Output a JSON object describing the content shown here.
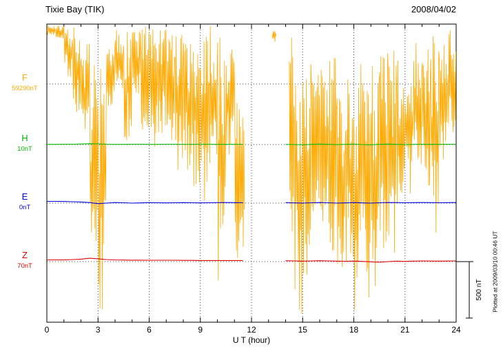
{
  "header": {
    "title": "Tixie Bay (TIK)",
    "date": "2008/04/02"
  },
  "axis": {
    "xlabel": "U T (hour)"
  },
  "scale_bar": {
    "label": "500 nT",
    "nT": 500
  },
  "plotted_note": "Plotted at 2009/03/10 00:46 UT",
  "trace_labels": [
    {
      "letter": "F",
      "value": "59290nT",
      "color": "#FFAA00"
    },
    {
      "letter": "H",
      "value": "10nT",
      "color": "#00BB00"
    },
    {
      "letter": "E",
      "value": "0nT",
      "color": "#0000DD"
    },
    {
      "letter": "Z",
      "value": "70nT",
      "color": "#DD0000"
    }
  ],
  "chart_data": {
    "type": "line",
    "title": "Tixie Bay (TIK) magnetogram 2008/04/02",
    "xlabel": "U T (hour)",
    "x_range": [
      0,
      24
    ],
    "x_ticks": [
      0,
      3,
      6,
      9,
      12,
      15,
      18,
      21,
      24
    ],
    "x_minor_tick_hr": 1,
    "grid": "dotted vertical at 3-hour marks, dotted horizontal at each trace baseline",
    "scale_bar_nT": 500,
    "data_gap_hours": [
      11.6,
      13.9
    ],
    "envelope_format": [
      "x_start_hr",
      "x_end_hr",
      "min_offset_nT",
      "max_offset_nT"
    ],
    "series": [
      {
        "name": "F",
        "color": "#FFAA00",
        "baseline_nT": 59290,
        "style": "noisy-envelope",
        "envelope": [
          [
            0.0,
            0.5,
            430,
            520
          ],
          [
            0.5,
            1.0,
            400,
            520
          ],
          [
            1.0,
            1.5,
            60,
            520
          ],
          [
            1.5,
            2.0,
            -300,
            520
          ],
          [
            2.0,
            2.5,
            -640,
            370
          ],
          [
            2.5,
            3.0,
            -1770,
            190
          ],
          [
            3.0,
            3.5,
            -2010,
            190
          ],
          [
            3.5,
            4.0,
            -225,
            310
          ],
          [
            4.0,
            4.5,
            -105,
            490
          ],
          [
            4.5,
            5.0,
            -550,
            520
          ],
          [
            5.0,
            5.5,
            -165,
            520
          ],
          [
            5.5,
            6.0,
            -520,
            520
          ],
          [
            6.0,
            6.5,
            -640,
            520
          ],
          [
            6.5,
            7.0,
            -465,
            490
          ],
          [
            7.0,
            7.5,
            -640,
            520
          ],
          [
            7.5,
            8.0,
            -820,
            490
          ],
          [
            8.0,
            8.5,
            -760,
            400
          ],
          [
            8.5,
            9.0,
            -940,
            460
          ],
          [
            9.0,
            9.5,
            -1060,
            490
          ],
          [
            9.5,
            10.0,
            -760,
            520
          ],
          [
            10.0,
            10.5,
            -1770,
            490
          ],
          [
            10.5,
            11.0,
            -700,
            370
          ],
          [
            11.0,
            11.6,
            -1830,
            130
          ],
          [
            13.2,
            13.45,
            370,
            490
          ],
          [
            14.2,
            14.5,
            -1360,
            430
          ],
          [
            14.5,
            15.0,
            -2040,
            130
          ],
          [
            15.0,
            15.5,
            -2010,
            370
          ],
          [
            15.5,
            16.0,
            -1535,
            190
          ],
          [
            16.0,
            16.5,
            -1240,
            130
          ],
          [
            16.5,
            17.0,
            -1475,
            250
          ],
          [
            17.0,
            17.5,
            -1830,
            70
          ],
          [
            17.5,
            18.0,
            -1655,
            130
          ],
          [
            18.0,
            18.5,
            -2010,
            190
          ],
          [
            18.5,
            19.0,
            -1950,
            130
          ],
          [
            19.0,
            19.5,
            -1830,
            250
          ],
          [
            19.5,
            20.0,
            -1770,
            310
          ],
          [
            20.0,
            20.5,
            -1655,
            370
          ],
          [
            20.5,
            21.0,
            -1360,
            250
          ],
          [
            21.0,
            21.5,
            -1060,
            310
          ],
          [
            21.5,
            22.0,
            -760,
            400
          ],
          [
            22.0,
            22.5,
            -940,
            370
          ],
          [
            22.5,
            23.0,
            -1360,
            460
          ],
          [
            23.0,
            23.5,
            -760,
            370
          ],
          [
            23.5,
            24.0,
            -465,
            490
          ]
        ]
      },
      {
        "name": "H",
        "color": "#00BB00",
        "baseline_nT": 10,
        "style": "line",
        "points": [
          [
            0,
            12
          ],
          [
            0.5,
            12
          ],
          [
            1,
            13
          ],
          [
            1.5,
            13
          ],
          [
            2,
            15
          ],
          [
            2.5,
            18
          ],
          [
            3,
            16
          ],
          [
            3.5,
            13
          ],
          [
            4,
            12
          ],
          [
            4.5,
            12
          ],
          [
            5,
            13
          ],
          [
            5.5,
            13
          ],
          [
            6,
            12
          ],
          [
            6.5,
            12
          ],
          [
            7,
            13
          ],
          [
            7.5,
            13
          ],
          [
            8,
            12
          ],
          [
            8.5,
            12
          ],
          [
            9,
            13
          ],
          [
            9.5,
            13
          ],
          [
            10,
            12
          ],
          [
            10.5,
            12
          ],
          [
            11,
            13
          ],
          [
            11.5,
            12
          ],
          [
            12,
            null
          ],
          [
            12.5,
            null
          ],
          [
            13,
            null
          ],
          [
            13.5,
            null
          ],
          [
            14,
            12
          ],
          [
            14.5,
            10
          ],
          [
            15,
            8
          ],
          [
            15.5,
            12
          ],
          [
            16,
            14
          ],
          [
            16.5,
            12
          ],
          [
            17,
            10
          ],
          [
            17.5,
            12
          ],
          [
            18,
            14
          ],
          [
            18.5,
            10
          ],
          [
            19,
            8
          ],
          [
            19.5,
            12
          ],
          [
            20,
            14
          ],
          [
            20.5,
            12
          ],
          [
            21,
            10
          ],
          [
            21.5,
            12
          ],
          [
            22,
            13
          ],
          [
            22.5,
            12
          ],
          [
            23,
            12
          ],
          [
            23.5,
            13
          ],
          [
            24,
            12
          ]
        ]
      },
      {
        "name": "E",
        "color": "#0000DD",
        "baseline_nT": 0,
        "style": "line",
        "points": [
          [
            0,
            15
          ],
          [
            0.5,
            15
          ],
          [
            1,
            14
          ],
          [
            1.5,
            12
          ],
          [
            2,
            10
          ],
          [
            2.5,
            5
          ],
          [
            3,
            -5
          ],
          [
            3.5,
            0
          ],
          [
            4,
            5
          ],
          [
            4.5,
            3
          ],
          [
            5,
            0
          ],
          [
            5.5,
            2
          ],
          [
            6,
            4
          ],
          [
            6.5,
            3
          ],
          [
            7,
            2
          ],
          [
            7.5,
            3
          ],
          [
            8,
            4
          ],
          [
            8.5,
            3
          ],
          [
            9,
            2
          ],
          [
            9.5,
            3
          ],
          [
            10,
            4
          ],
          [
            10.5,
            5
          ],
          [
            11,
            4
          ],
          [
            11.5,
            3
          ],
          [
            12,
            null
          ],
          [
            12.5,
            null
          ],
          [
            13,
            null
          ],
          [
            13.5,
            null
          ],
          [
            14,
            4
          ],
          [
            14.5,
            2
          ],
          [
            15,
            0
          ],
          [
            15.5,
            3
          ],
          [
            16,
            5
          ],
          [
            16.5,
            3
          ],
          [
            17,
            0
          ],
          [
            17.5,
            2
          ],
          [
            18,
            5
          ],
          [
            18.5,
            2
          ],
          [
            19,
            0
          ],
          [
            19.5,
            3
          ],
          [
            20,
            5
          ],
          [
            20.5,
            4
          ],
          [
            21,
            3
          ],
          [
            21.5,
            4
          ],
          [
            22,
            5
          ],
          [
            22.5,
            4
          ],
          [
            23,
            3
          ],
          [
            23.5,
            4
          ],
          [
            24,
            5
          ]
        ]
      },
      {
        "name": "Z",
        "color": "#DD0000",
        "baseline_nT": 70,
        "style": "line",
        "points": [
          [
            0,
            85
          ],
          [
            0.5,
            85
          ],
          [
            1,
            86
          ],
          [
            1.5,
            88
          ],
          [
            2,
            92
          ],
          [
            2.5,
            100
          ],
          [
            3,
            95
          ],
          [
            3.5,
            88
          ],
          [
            4,
            85
          ],
          [
            4.5,
            84
          ],
          [
            5,
            83
          ],
          [
            5.5,
            83
          ],
          [
            6,
            82
          ],
          [
            6.5,
            82
          ],
          [
            7,
            82
          ],
          [
            7.5,
            82
          ],
          [
            8,
            81
          ],
          [
            8.5,
            81
          ],
          [
            9,
            80
          ],
          [
            9.5,
            80
          ],
          [
            10,
            80
          ],
          [
            10.5,
            80
          ],
          [
            11,
            80
          ],
          [
            11.5,
            80
          ],
          [
            12,
            null
          ],
          [
            12.5,
            null
          ],
          [
            13,
            null
          ],
          [
            13.5,
            null
          ],
          [
            14,
            78
          ],
          [
            14.5,
            76
          ],
          [
            15,
            74
          ],
          [
            15.5,
            76
          ],
          [
            16,
            78
          ],
          [
            16.5,
            76
          ],
          [
            17,
            74
          ],
          [
            17.5,
            73
          ],
          [
            18,
            75
          ],
          [
            18.5,
            72
          ],
          [
            19,
            68
          ],
          [
            19.5,
            65
          ],
          [
            20,
            70
          ],
          [
            20.5,
            74
          ],
          [
            21,
            72
          ],
          [
            21.5,
            74
          ],
          [
            22,
            76
          ],
          [
            22.5,
            75
          ],
          [
            23,
            74
          ],
          [
            23.5,
            75
          ],
          [
            24,
            76
          ]
        ]
      }
    ]
  }
}
